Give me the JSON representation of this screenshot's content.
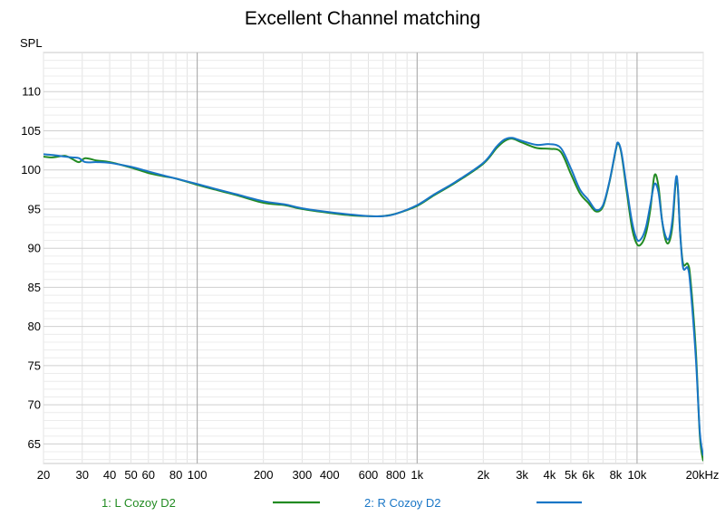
{
  "chart_data": {
    "type": "line",
    "title": "Excellent Channel matching",
    "ylabel": "SPL",
    "x_scale": "log",
    "xlim": [
      20,
      20000
    ],
    "ylim": [
      62.5,
      115
    ],
    "grid": true,
    "legend_placement": "bottom",
    "x_ticks": [
      20,
      30,
      40,
      50,
      60,
      80,
      100,
      200,
      300,
      400,
      600,
      800,
      1000,
      2000,
      3000,
      4000,
      5000,
      6000,
      8000,
      10000,
      20000
    ],
    "x_tick_labels": [
      "20",
      "30",
      "40",
      "50",
      "60",
      "80",
      "100",
      "200",
      "300",
      "400",
      "600",
      "800",
      "1k",
      "2k",
      "3k",
      "4k",
      "5k",
      "6k",
      "8k",
      "10k",
      "20kHz"
    ],
    "y_ticks": [
      65,
      70,
      75,
      80,
      85,
      90,
      95,
      100,
      105,
      110
    ],
    "y_tick_labels": [
      "65",
      "70",
      "75",
      "80",
      "85",
      "90",
      "95",
      "100",
      "105",
      "110"
    ],
    "series": [
      {
        "name": "1: L Cozoy D2",
        "color": "#228B22",
        "points": [
          [
            20,
            101.7
          ],
          [
            22,
            101.6
          ],
          [
            25,
            101.8
          ],
          [
            27,
            101.4
          ],
          [
            29,
            101.0
          ],
          [
            31,
            101.5
          ],
          [
            35,
            101.2
          ],
          [
            40,
            101.0
          ],
          [
            50,
            100.3
          ],
          [
            60,
            99.6
          ],
          [
            70,
            99.2
          ],
          [
            80,
            98.9
          ],
          [
            100,
            98.1
          ],
          [
            120,
            97.5
          ],
          [
            150,
            96.8
          ],
          [
            200,
            95.8
          ],
          [
            250,
            95.5
          ],
          [
            300,
            95.0
          ],
          [
            400,
            94.5
          ],
          [
            500,
            94.2
          ],
          [
            600,
            94.1
          ],
          [
            700,
            94.1
          ],
          [
            800,
            94.4
          ],
          [
            1000,
            95.4
          ],
          [
            1200,
            96.8
          ],
          [
            1500,
            98.4
          ],
          [
            2000,
            100.8
          ],
          [
            2300,
            102.8
          ],
          [
            2500,
            103.7
          ],
          [
            2700,
            104.0
          ],
          [
            3000,
            103.5
          ],
          [
            3500,
            102.8
          ],
          [
            4000,
            102.7
          ],
          [
            4500,
            102.3
          ],
          [
            5000,
            99.5
          ],
          [
            5500,
            97.0
          ],
          [
            6000,
            95.8
          ],
          [
            6500,
            94.7
          ],
          [
            7000,
            95.3
          ],
          [
            7500,
            98.5
          ],
          [
            8000,
            102.5
          ],
          [
            8200,
            103.4
          ],
          [
            8500,
            102.0
          ],
          [
            9000,
            97.0
          ],
          [
            9500,
            92.5
          ],
          [
            10000,
            90.5
          ],
          [
            10500,
            90.6
          ],
          [
            11000,
            92.0
          ],
          [
            11500,
            95.0
          ],
          [
            12000,
            99.3
          ],
          [
            12500,
            98.0
          ],
          [
            13000,
            93.5
          ],
          [
            13500,
            91.0
          ],
          [
            14000,
            90.8
          ],
          [
            14500,
            93.0
          ],
          [
            15000,
            98.5
          ],
          [
            15300,
            98.0
          ],
          [
            15700,
            92.0
          ],
          [
            16200,
            88.0
          ],
          [
            17000,
            88.0
          ],
          [
            17500,
            86.0
          ],
          [
            18500,
            77.0
          ],
          [
            19300,
            66.0
          ],
          [
            20000,
            62.8
          ]
        ]
      },
      {
        "name": "2: R Cozoy D2",
        "color": "#1976C6",
        "points": [
          [
            20,
            102.0
          ],
          [
            22,
            101.9
          ],
          [
            25,
            101.7
          ],
          [
            27,
            101.6
          ],
          [
            29,
            101.5
          ],
          [
            31,
            101.0
          ],
          [
            35,
            101.0
          ],
          [
            40,
            100.9
          ],
          [
            50,
            100.4
          ],
          [
            60,
            99.8
          ],
          [
            70,
            99.3
          ],
          [
            80,
            98.9
          ],
          [
            100,
            98.2
          ],
          [
            120,
            97.6
          ],
          [
            150,
            96.9
          ],
          [
            200,
            96.0
          ],
          [
            250,
            95.6
          ],
          [
            300,
            95.1
          ],
          [
            400,
            94.6
          ],
          [
            500,
            94.3
          ],
          [
            600,
            94.1
          ],
          [
            700,
            94.1
          ],
          [
            800,
            94.4
          ],
          [
            1000,
            95.5
          ],
          [
            1200,
            96.9
          ],
          [
            1500,
            98.5
          ],
          [
            2000,
            100.9
          ],
          [
            2300,
            103.0
          ],
          [
            2500,
            103.9
          ],
          [
            2700,
            104.1
          ],
          [
            3000,
            103.7
          ],
          [
            3500,
            103.2
          ],
          [
            4000,
            103.3
          ],
          [
            4500,
            102.8
          ],
          [
            5000,
            100.2
          ],
          [
            5500,
            97.5
          ],
          [
            6000,
            96.2
          ],
          [
            6500,
            94.9
          ],
          [
            7000,
            95.5
          ],
          [
            7500,
            98.6
          ],
          [
            8000,
            102.6
          ],
          [
            8200,
            103.5
          ],
          [
            8500,
            102.2
          ],
          [
            9000,
            97.5
          ],
          [
            9500,
            93.3
          ],
          [
            10000,
            91.1
          ],
          [
            10500,
            91.3
          ],
          [
            11000,
            92.8
          ],
          [
            11500,
            95.6
          ],
          [
            12000,
            98.2
          ],
          [
            12500,
            97.2
          ],
          [
            13000,
            93.5
          ],
          [
            13500,
            91.5
          ],
          [
            14000,
            91.3
          ],
          [
            14500,
            93.8
          ],
          [
            15000,
            98.8
          ],
          [
            15300,
            98.2
          ],
          [
            15700,
            92.0
          ],
          [
            16200,
            87.5
          ],
          [
            17000,
            87.5
          ],
          [
            17500,
            85.0
          ],
          [
            18500,
            76.0
          ],
          [
            19300,
            66.5
          ],
          [
            20000,
            63.5
          ]
        ]
      }
    ]
  }
}
